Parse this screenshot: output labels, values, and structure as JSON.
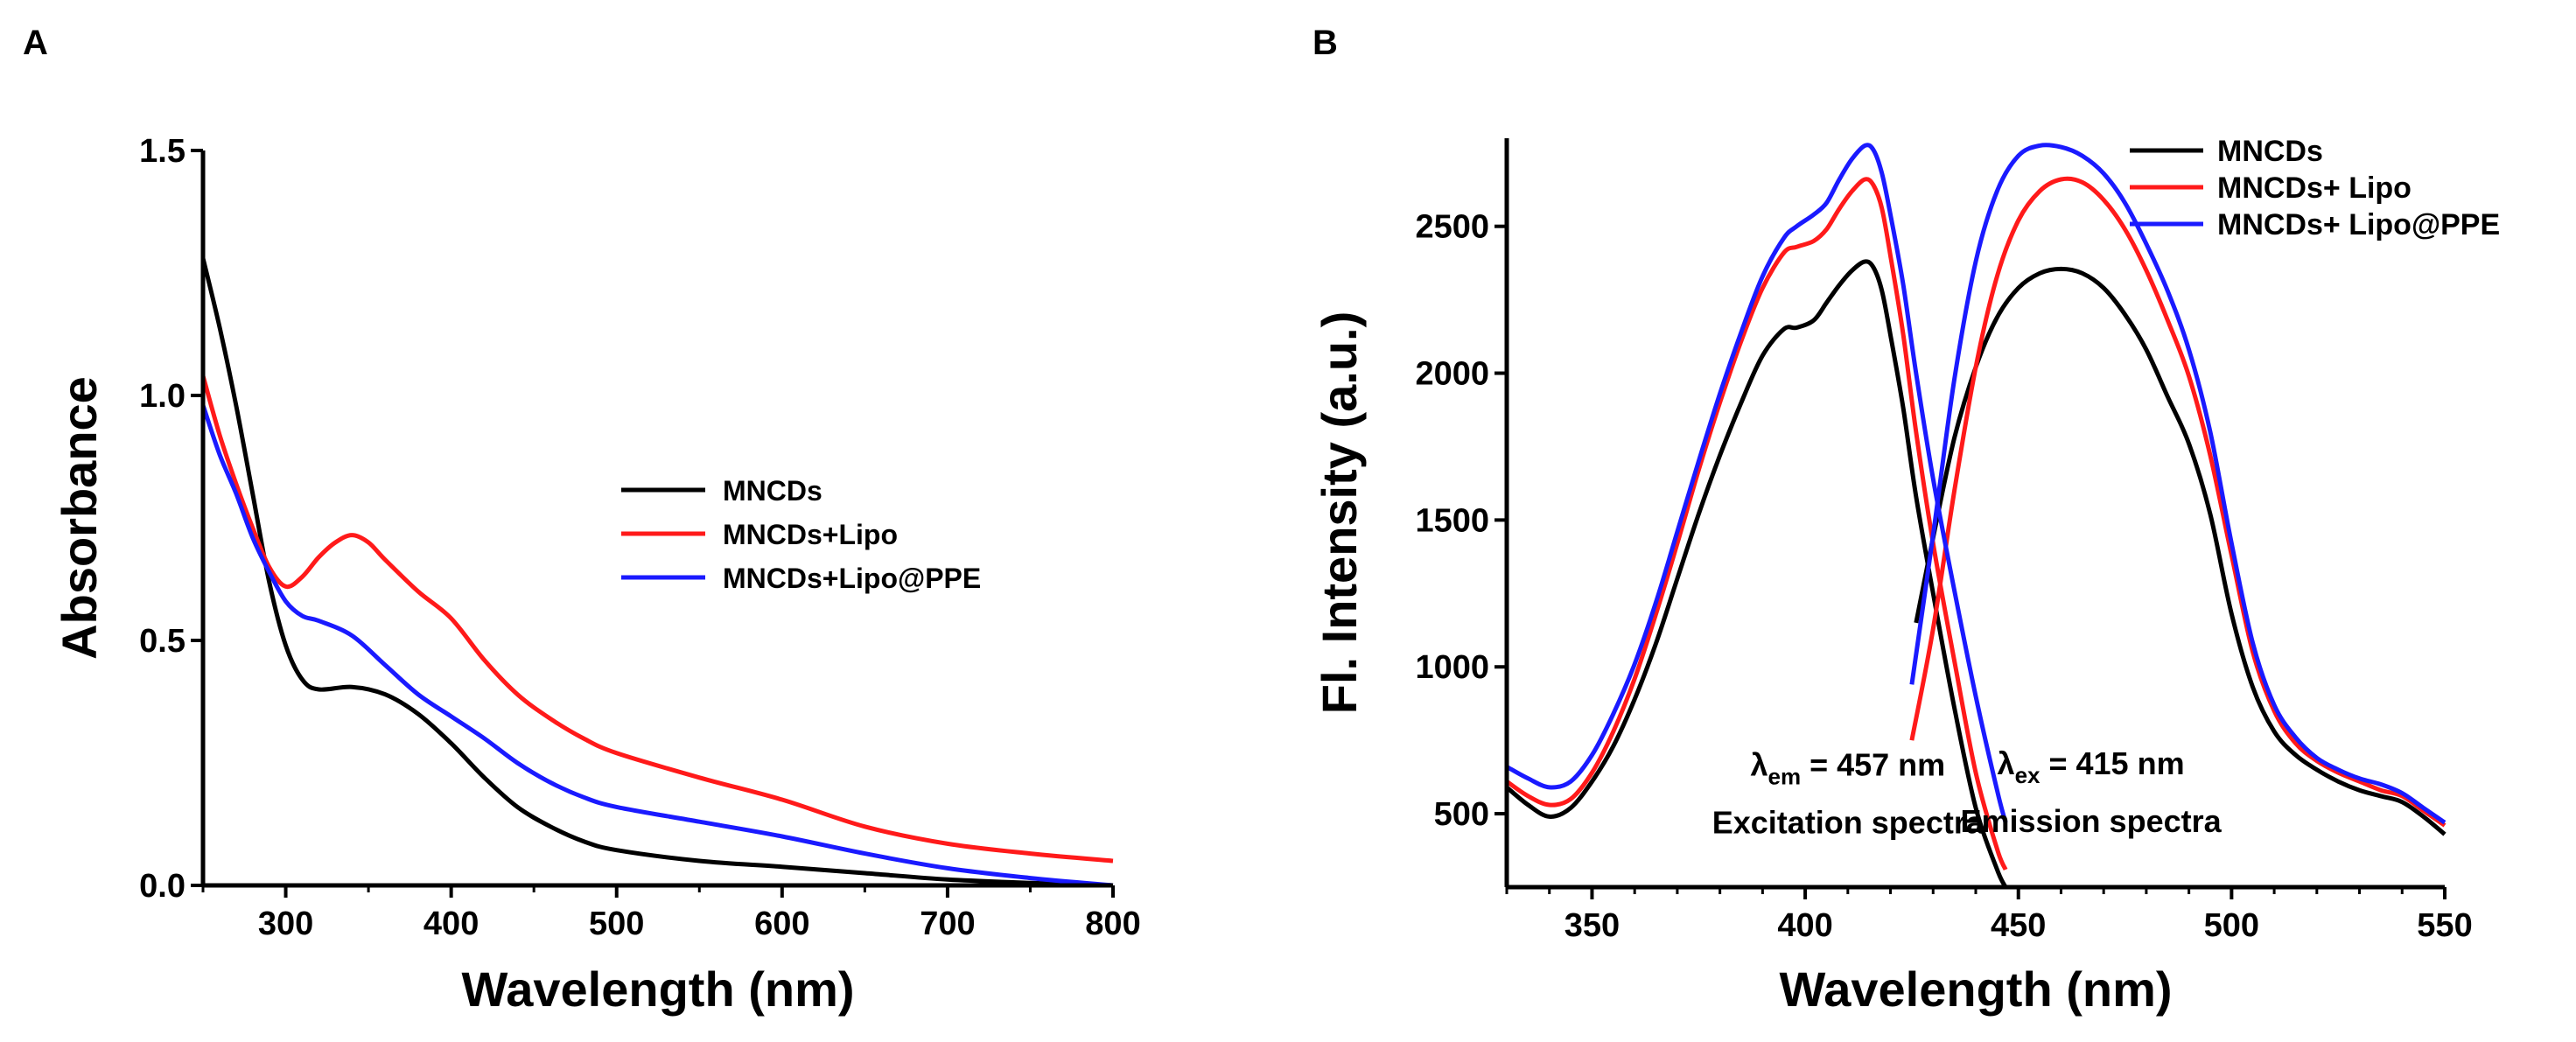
{
  "chart_data": [
    {
      "panel_label": "A",
      "type": "line",
      "xlabel": "Wavelength (nm)",
      "ylabel": "Absorbance",
      "xlim": [
        250,
        800
      ],
      "ylim": [
        0,
        1.5
      ],
      "xticks": [
        "300",
        "400",
        "500",
        "600",
        "700",
        "800"
      ],
      "yticks": [
        "0.0",
        "0.5",
        "1.0",
        "1.5"
      ],
      "legend_position": "center-right",
      "series": [
        {
          "name": "MNCDs",
          "color": "#000000",
          "x": [
            250,
            260,
            270,
            280,
            290,
            300,
            310,
            320,
            340,
            360,
            380,
            400,
            420,
            440,
            460,
            480,
            500,
            550,
            600,
            650,
            700,
            750,
            800
          ],
          "y": [
            1.28,
            1.14,
            0.98,
            0.8,
            0.62,
            0.49,
            0.42,
            0.4,
            0.405,
            0.39,
            0.35,
            0.29,
            0.22,
            0.16,
            0.12,
            0.09,
            0.072,
            0.05,
            0.038,
            0.025,
            0.012,
            0.005,
            0.0
          ]
        },
        {
          "name": "MNCDs+Lipo",
          "color": "#ff1a1a",
          "x": [
            250,
            260,
            270,
            280,
            290,
            300,
            310,
            320,
            330,
            340,
            350,
            360,
            380,
            400,
            420,
            440,
            460,
            480,
            500,
            550,
            600,
            650,
            700,
            750,
            800
          ],
          "y": [
            1.04,
            0.92,
            0.82,
            0.73,
            0.65,
            0.61,
            0.63,
            0.67,
            0.7,
            0.715,
            0.7,
            0.665,
            0.6,
            0.545,
            0.46,
            0.39,
            0.34,
            0.3,
            0.27,
            0.22,
            0.175,
            0.12,
            0.085,
            0.065,
            0.05
          ]
        },
        {
          "name": "MNCDs+Lipo@PPE",
          "color": "#1a1aff",
          "x": [
            250,
            260,
            270,
            280,
            290,
            300,
            310,
            320,
            340,
            360,
            380,
            400,
            420,
            440,
            460,
            480,
            500,
            550,
            600,
            650,
            700,
            750,
            800
          ],
          "y": [
            0.98,
            0.88,
            0.8,
            0.71,
            0.64,
            0.58,
            0.55,
            0.54,
            0.51,
            0.45,
            0.39,
            0.345,
            0.3,
            0.25,
            0.21,
            0.18,
            0.16,
            0.13,
            0.1,
            0.065,
            0.035,
            0.015,
            0.0
          ]
        }
      ]
    },
    {
      "panel_label": "B",
      "type": "line",
      "xlabel": "Wavelength (nm)",
      "ylabel": "Fl. Intensity (a.u.)",
      "xlim": [
        330,
        550
      ],
      "ylim": [
        250,
        2800
      ],
      "xticks": [
        "350",
        "400",
        "450",
        "500",
        "550"
      ],
      "yticks": [
        "500",
        "1000",
        "1500",
        "2000",
        "2500"
      ],
      "legend_position": "top-right",
      "annotations": [
        {
          "symbol": "λ",
          "sub": "em",
          "text": " = 457 nm",
          "caption": "Excitation spectra",
          "x": 410,
          "y": 630
        },
        {
          "symbol": "λ",
          "sub": "ex",
          "text": " = 415 nm",
          "caption": "Emission spectra",
          "x": 467,
          "y": 635
        }
      ],
      "series": [
        {
          "name": "MNCDs",
          "color": "#000000",
          "excitation": {
            "x": [
              330,
              335,
              340,
              345,
              350,
              355,
              360,
              365,
              370,
              375,
              380,
              385,
              390,
              395,
              398,
              402,
              405,
              408,
              411,
              414,
              416,
              418,
              420,
              423,
              426,
              430,
              435,
              440,
              445,
              447
            ],
            "y": [
              590,
              530,
              490,
              520,
              610,
              730,
              890,
              1080,
              1300,
              1520,
              1720,
              1900,
              2060,
              2150,
              2155,
              2180,
              2240,
              2300,
              2350,
              2380,
              2360,
              2280,
              2130,
              1880,
              1580,
              1250,
              860,
              520,
              310,
              250
            ]
          },
          "emission": {
            "x": [
              426,
              430,
              435,
              440,
              445,
              450,
              455,
              460,
              465,
              470,
              475,
              480,
              485,
              490,
              495,
              500,
              505,
              510,
              515,
              520,
              525,
              530,
              535,
              540,
              545,
              550
            ],
            "y": [
              1150,
              1440,
              1780,
              2020,
              2190,
              2290,
              2340,
              2355,
              2340,
              2290,
              2200,
              2080,
              1920,
              1760,
              1520,
              1180,
              930,
              780,
              700,
              650,
              610,
              580,
              560,
              540,
              490,
              430
            ]
          }
        },
        {
          "name": "MNCDs+ Lipo",
          "color": "#ff1a1a",
          "excitation": {
            "x": [
              330,
              335,
              340,
              345,
              350,
              355,
              360,
              365,
              370,
              375,
              380,
              385,
              390,
              395,
              398,
              402,
              405,
              408,
              411,
              414,
              416,
              418,
              420,
              423,
              426,
              430,
              435,
              440,
              445,
              447
            ],
            "y": [
              610,
              560,
              530,
              550,
              640,
              780,
              960,
              1180,
              1420,
              1670,
              1900,
              2110,
              2290,
              2410,
              2430,
              2450,
              2490,
              2560,
              2620,
              2660,
              2640,
              2560,
              2400,
              2130,
              1800,
              1420,
              1020,
              640,
              380,
              310
            ]
          },
          "emission": {
            "x": [
              425,
              430,
              435,
              440,
              445,
              450,
              455,
              460,
              465,
              470,
              475,
              480,
              485,
              490,
              495,
              500,
              505,
              510,
              515,
              520,
              525,
              530,
              535,
              540,
              545,
              550
            ],
            "y": [
              750,
              1130,
              1600,
              2020,
              2330,
              2520,
              2620,
              2660,
              2650,
              2590,
              2490,
              2350,
              2180,
              1990,
              1720,
              1380,
              1050,
              850,
              740,
              680,
              640,
              610,
              580,
              560,
              510,
              460
            ]
          }
        },
        {
          "name": "MNCDs+ Lipo@PPE",
          "color": "#1a1aff",
          "excitation": {
            "x": [
              330,
              335,
              340,
              345,
              350,
              355,
              360,
              365,
              370,
              375,
              380,
              385,
              390,
              395,
              398,
              402,
              405,
              408,
              411,
              414,
              416,
              418,
              420,
              423,
              426,
              430,
              435,
              440,
              445,
              447
            ],
            "y": [
              660,
              620,
              590,
              610,
              700,
              840,
              1010,
              1220,
              1460,
              1700,
              1930,
              2140,
              2330,
              2460,
              2500,
              2540,
              2580,
              2660,
              2730,
              2775,
              2760,
              2680,
              2540,
              2300,
              2000,
              1640,
              1260,
              900,
              580,
              470
            ]
          },
          "emission": {
            "x": [
              425,
              430,
              435,
              440,
              445,
              450,
              455,
              460,
              465,
              470,
              475,
              480,
              485,
              490,
              495,
              500,
              505,
              510,
              515,
              520,
              525,
              530,
              535,
              540,
              545,
              550
            ],
            "y": [
              940,
              1450,
              1980,
              2380,
              2620,
              2740,
              2775,
              2770,
              2740,
              2680,
              2580,
              2440,
              2280,
              2080,
              1800,
              1420,
              1080,
              870,
              760,
              690,
              650,
              620,
              600,
              570,
              520,
              470
            ]
          }
        }
      ]
    }
  ]
}
